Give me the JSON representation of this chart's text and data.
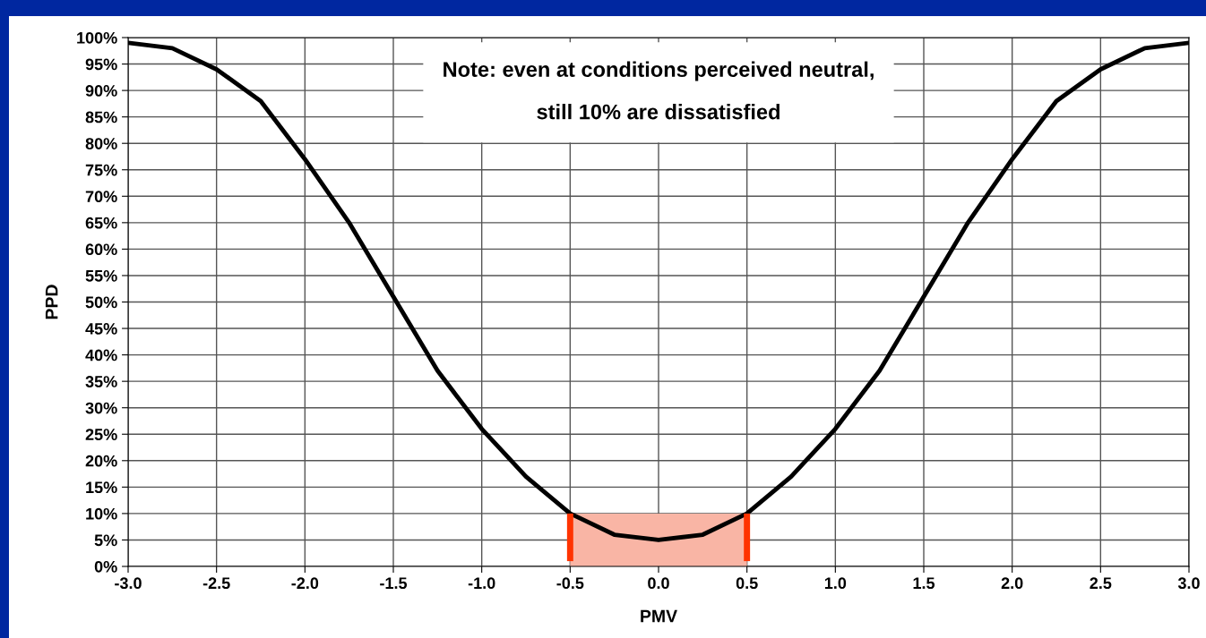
{
  "chart_data": {
    "type": "line",
    "xlabel": "PMV",
    "ylabel": "PPD",
    "x": [
      -3.0,
      -2.75,
      -2.5,
      -2.25,
      -2.0,
      -1.75,
      -1.5,
      -1.25,
      -1.0,
      -0.75,
      -0.5,
      -0.25,
      0.0,
      0.25,
      0.5,
      0.75,
      1.0,
      1.25,
      1.5,
      1.75,
      2.0,
      2.25,
      2.5,
      2.75,
      3.0
    ],
    "series": [
      {
        "color": "#000000",
        "values": [
          99,
          98,
          94,
          88,
          77,
          65,
          51,
          37,
          26,
          17,
          10,
          6,
          5,
          6,
          10,
          17,
          26,
          37,
          51,
          65,
          77,
          88,
          94,
          98,
          99
        ]
      }
    ],
    "xlim": [
      -3.0,
      3.0
    ],
    "xticks": [
      {
        "value": -3.0,
        "label": "-3.0"
      },
      {
        "value": -2.5,
        "label": "-2.5"
      },
      {
        "value": -2.0,
        "label": "-2.0"
      },
      {
        "value": -1.5,
        "label": "-1.5"
      },
      {
        "value": -1.0,
        "label": "-1.0"
      },
      {
        "value": -0.5,
        "label": "-0.5"
      },
      {
        "value": 0.0,
        "label": "0.0"
      },
      {
        "value": 0.5,
        "label": "0.5"
      },
      {
        "value": 1.0,
        "label": "1.0"
      },
      {
        "value": 1.5,
        "label": "1.5"
      },
      {
        "value": 2.0,
        "label": "2.0"
      },
      {
        "value": 2.5,
        "label": "2.5"
      },
      {
        "value": 3.0,
        "label": "3.0"
      }
    ],
    "ylim": [
      0,
      100
    ],
    "yticks": [
      {
        "value": 0,
        "label": "0%"
      },
      {
        "value": 5,
        "label": "5%"
      },
      {
        "value": 10,
        "label": "10%"
      },
      {
        "value": 15,
        "label": "15%"
      },
      {
        "value": 20,
        "label": "20%"
      },
      {
        "value": 25,
        "label": "25%"
      },
      {
        "value": 30,
        "label": "30%"
      },
      {
        "value": 35,
        "label": "35%"
      },
      {
        "value": 40,
        "label": "40%"
      },
      {
        "value": 45,
        "label": "45%"
      },
      {
        "value": 50,
        "label": "50%"
      },
      {
        "value": 55,
        "label": "55%"
      },
      {
        "value": 60,
        "label": "60%"
      },
      {
        "value": 65,
        "label": "65%"
      },
      {
        "value": 70,
        "label": "70%"
      },
      {
        "value": 75,
        "label": "75%"
      },
      {
        "value": 80,
        "label": "80%"
      },
      {
        "value": 85,
        "label": "85%"
      },
      {
        "value": 90,
        "label": "90%"
      },
      {
        "value": 95,
        "label": "95%"
      },
      {
        "value": 100,
        "label": "100%"
      }
    ],
    "grid": true,
    "marker": "none",
    "line_style": "solid",
    "bands": [
      {
        "axis": "x",
        "from": -0.5,
        "to": 0.5,
        "color": "#f9b5a5"
      }
    ],
    "ref_lines": [
      {
        "axis": "x",
        "value": -0.5,
        "color": "#ff3300"
      },
      {
        "axis": "x",
        "value": 0.5,
        "color": "#ff3300"
      }
    ],
    "annotations": [
      "Note: even at conditions perceived neutral,\n\nstill 10% are dissatisfied"
    ]
  }
}
